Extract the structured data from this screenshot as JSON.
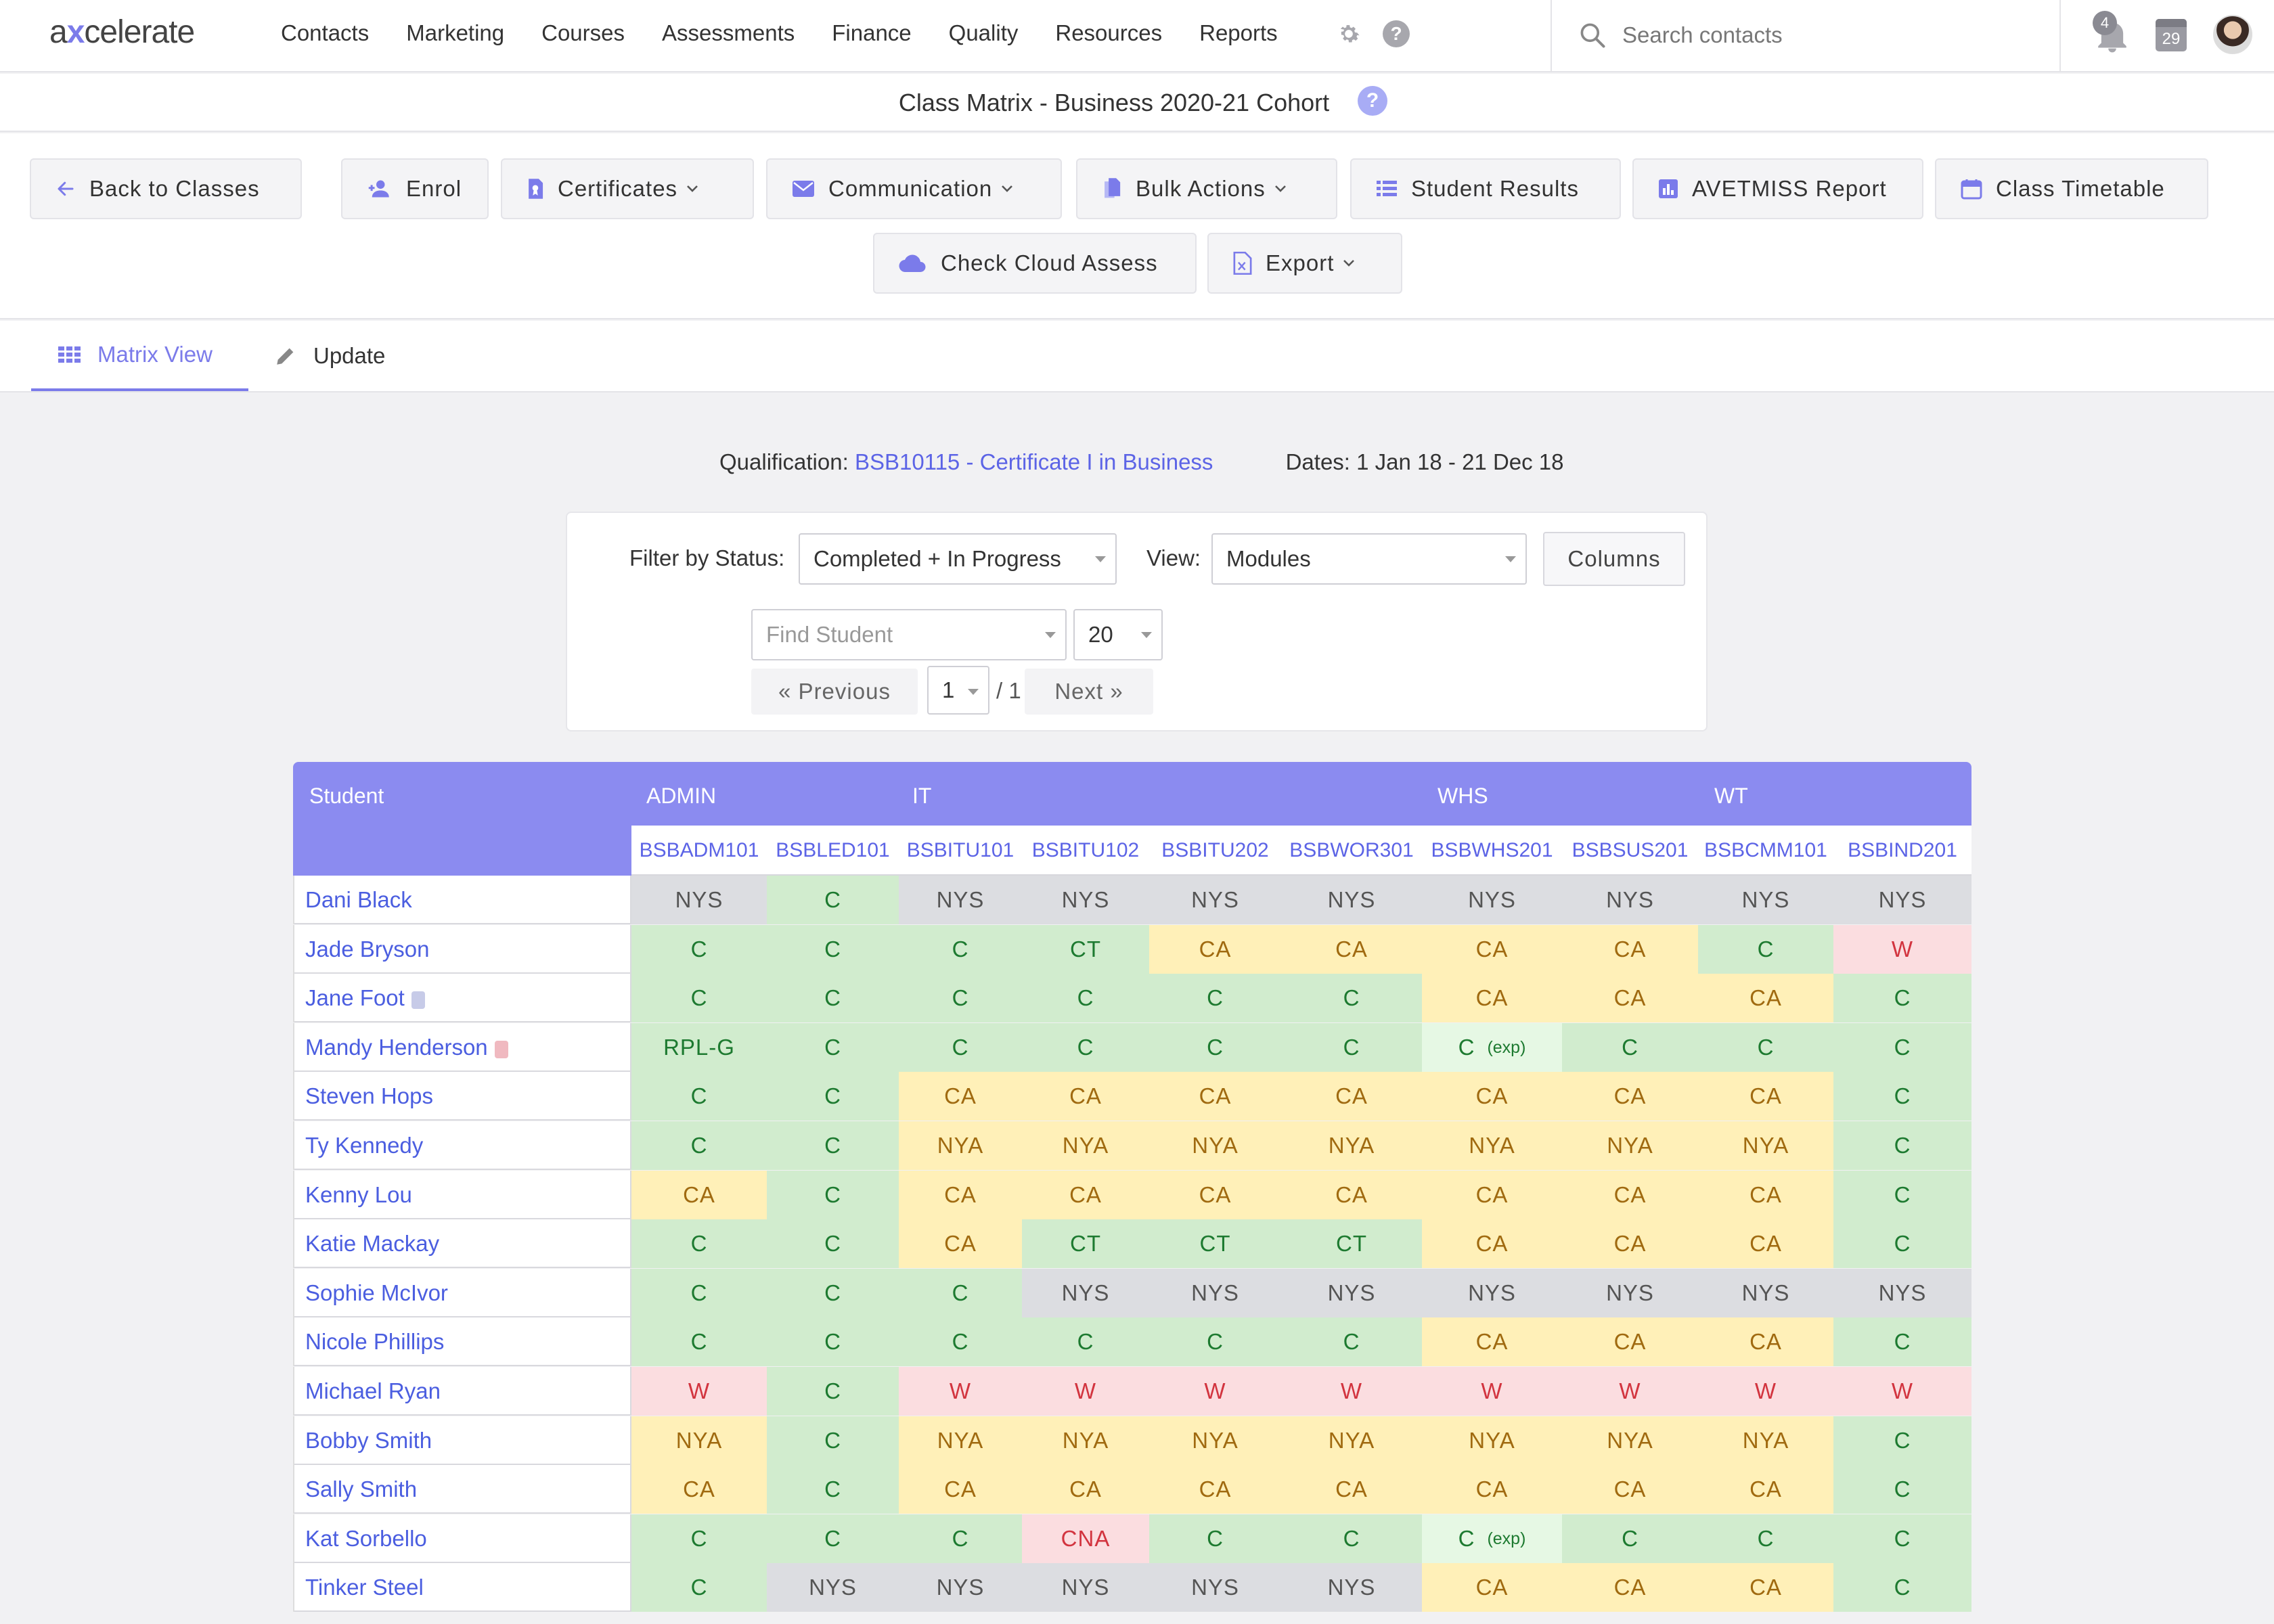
{
  "app": {
    "logo_pre": "a",
    "logo_x": "x",
    "logo_post": "celerate"
  },
  "nav": {
    "items": [
      "Contacts",
      "Marketing",
      "Courses",
      "Assessments",
      "Finance",
      "Quality",
      "Resources",
      "Reports"
    ],
    "search_placeholder": "Search contacts",
    "notification_count": "4",
    "calendar_day": "29"
  },
  "page": {
    "title": "Class Matrix - Business 2020-21 Cohort",
    "help": "?"
  },
  "toolbar": {
    "back": "Back to Classes",
    "enrol": "Enrol",
    "certificates": "Certificates",
    "communication": "Communication",
    "bulk_actions": "Bulk Actions",
    "student_results": "Student Results",
    "avetmiss": "AVETMISS Report",
    "timetable": "Class Timetable",
    "cloud_assess": "Check Cloud Assess",
    "export": "Export"
  },
  "tabs": {
    "matrix": "Matrix View",
    "update": "Update"
  },
  "info": {
    "qual_label": "Qualification:",
    "qual_value": "BSB10115 - Certificate I in Business",
    "dates": "Dates: 1 Jan 18 - 21 Dec 18"
  },
  "filters": {
    "status_label": "Filter by Status:",
    "status_value": "Completed + In Progress",
    "view_label": "View:",
    "view_value": "Modules",
    "columns_button": "Columns",
    "find_placeholder": "Find Student",
    "page_size": "20",
    "prev": "« Previous",
    "page": "1",
    "of_pages": "/ 1",
    "next": "Next »"
  },
  "matrix": {
    "student_header": "Student",
    "groups": [
      "ADMIN",
      "IT",
      "WHS",
      "WT"
    ],
    "units": [
      "BSBADM101",
      "BSBLED101",
      "BSBITU101",
      "BSBITU102",
      "BSBITU202",
      "BSBWOR301",
      "BSBWHS201",
      "BSBSUS201",
      "BSBCMM101",
      "BSBIND201"
    ],
    "exp_label": "(exp)",
    "rows": [
      {
        "name": "Dani Black",
        "cells": [
          "NYS",
          "C",
          "NYS",
          "NYS",
          "NYS",
          "NYS",
          "NYS",
          "NYS",
          "NYS",
          "NYS"
        ]
      },
      {
        "name": "Jade Bryson",
        "cells": [
          "C",
          "C",
          "C",
          "CT",
          "CA",
          "CA",
          "CA",
          "CA",
          "C",
          "W"
        ]
      },
      {
        "name": "Jane Foot",
        "badge": "grey",
        "cells": [
          "C",
          "C",
          "C",
          "C",
          "C",
          "C",
          "CA",
          "CA",
          "CA",
          "C"
        ]
      },
      {
        "name": "Mandy Henderson",
        "badge": "red",
        "cells": [
          "RPL-G",
          "C",
          "C",
          "C",
          "C",
          "C",
          "C(exp)",
          "C",
          "C",
          "C"
        ]
      },
      {
        "name": "Steven Hops",
        "cells": [
          "C",
          "C",
          "CA",
          "CA",
          "CA",
          "CA",
          "CA",
          "CA",
          "CA",
          "C"
        ]
      },
      {
        "name": "Ty Kennedy",
        "cells": [
          "C",
          "C",
          "NYA",
          "NYA",
          "NYA",
          "NYA",
          "NYA",
          "NYA",
          "NYA",
          "C"
        ]
      },
      {
        "name": "Kenny Lou",
        "cells": [
          "CA",
          "C",
          "CA",
          "CA",
          "CA",
          "CA",
          "CA",
          "CA",
          "CA",
          "C"
        ]
      },
      {
        "name": "Katie Mackay",
        "cells": [
          "C",
          "C",
          "CA",
          "CT",
          "CT",
          "CT",
          "CA",
          "CA",
          "CA",
          "C"
        ]
      },
      {
        "name": "Sophie McIvor",
        "cells": [
          "C",
          "C",
          "C",
          "NYS",
          "NYS",
          "NYS",
          "NYS",
          "NYS",
          "NYS",
          "NYS"
        ]
      },
      {
        "name": "Nicole Phillips",
        "cells": [
          "C",
          "C",
          "C",
          "C",
          "C",
          "C",
          "CA",
          "CA",
          "CA",
          "C"
        ]
      },
      {
        "name": "Michael Ryan",
        "cells": [
          "W",
          "C",
          "W",
          "W",
          "W",
          "W",
          "W",
          "W",
          "W",
          "W"
        ]
      },
      {
        "name": "Bobby Smith",
        "cells": [
          "NYA",
          "C",
          "NYA",
          "NYA",
          "NYA",
          "NYA",
          "NYA",
          "NYA",
          "NYA",
          "C"
        ]
      },
      {
        "name": "Sally Smith",
        "cells": [
          "CA",
          "C",
          "CA",
          "CA",
          "CA",
          "CA",
          "CA",
          "CA",
          "CA",
          "C"
        ]
      },
      {
        "name": "Kat Sorbello",
        "cells": [
          "C",
          "C",
          "C",
          "CNA",
          "C",
          "C",
          "C(exp)",
          "C",
          "C",
          "C"
        ]
      },
      {
        "name": "Tinker Steel",
        "cells": [
          "C",
          "NYS",
          "NYS",
          "NYS",
          "NYS",
          "NYS",
          "CA",
          "CA",
          "CA",
          "C"
        ]
      }
    ]
  },
  "colors": {
    "accent": "#7b7bea",
    "header": "#8b8bf0",
    "link": "#4b5ee0"
  }
}
